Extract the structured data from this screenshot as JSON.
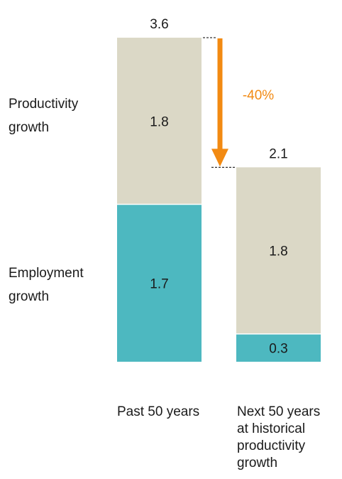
{
  "chart_data": {
    "type": "stacked-bar",
    "categories": [
      [
        "Past 50 years"
      ],
      [
        "Next 50 years",
        "at historical",
        "productivity",
        "growth"
      ]
    ],
    "series": [
      {
        "name": "Employment growth",
        "label_lines": [
          "Employment",
          "growth"
        ],
        "values": [
          1.7,
          0.3
        ],
        "color": "#4db8c0"
      },
      {
        "name": "Productivity growth",
        "label_lines": [
          "Productivity",
          "growth"
        ],
        "values": [
          1.8,
          1.8
        ],
        "color": "#dbd8c6"
      }
    ],
    "totals": [
      3.6,
      2.1
    ],
    "value_labels": [
      [
        "1.7",
        "1.8"
      ],
      [
        "0.3",
        "1.8"
      ]
    ],
    "total_labels": [
      "3.6",
      "2.1"
    ],
    "annotation": {
      "text": "-40%",
      "color": "#f28a12"
    },
    "ylim": [
      0,
      3.6
    ]
  }
}
